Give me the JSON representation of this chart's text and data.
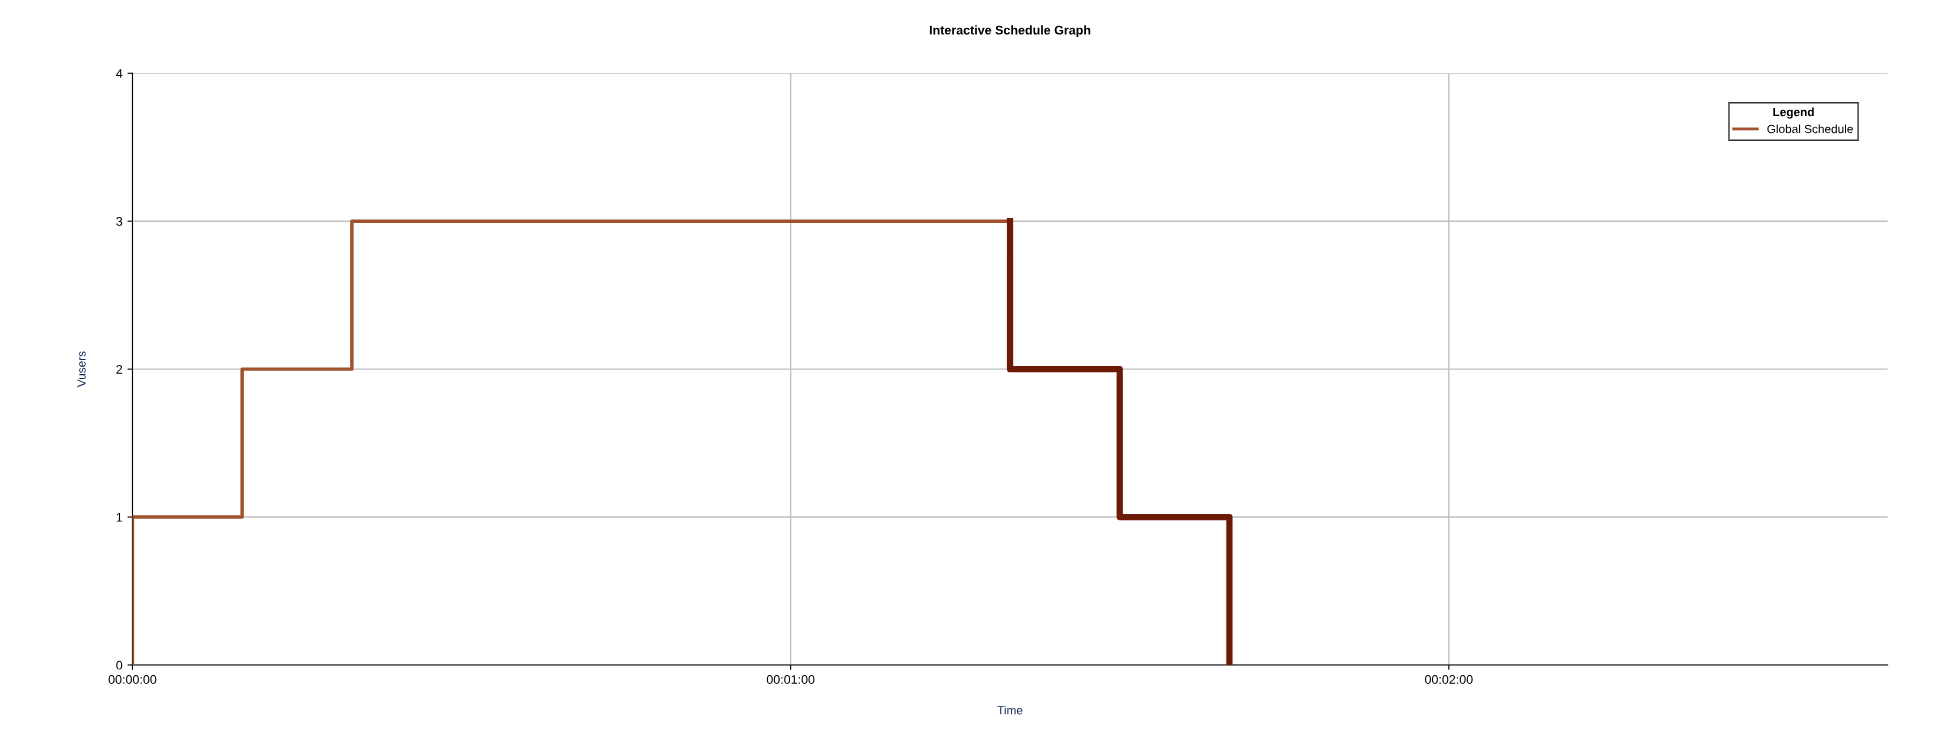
{
  "chart_data": {
    "type": "line",
    "title": "Interactive Schedule Graph",
    "xlabel": "Time",
    "ylabel": "Vusers",
    "legend_title": "Legend",
    "series": [
      {
        "name": "Global Schedule",
        "color": "#a0522d",
        "x": [
          0,
          0,
          10,
          10,
          20,
          20,
          80
        ],
        "values": [
          0,
          1,
          1,
          2,
          2,
          3,
          3
        ]
      },
      {
        "color": "#6b1a05",
        "x": [
          80,
          80,
          90,
          90,
          100,
          100
        ],
        "values": [
          3,
          2,
          2,
          1,
          1,
          0
        ]
      }
    ],
    "xlim": [
      0,
      160
    ],
    "xticks": [
      {
        "value": 0,
        "label": "00:00:00"
      },
      {
        "value": 60,
        "label": "00:01:00"
      },
      {
        "value": 120,
        "label": "00:02:00"
      }
    ],
    "ylim": [
      0,
      4
    ],
    "yticks": [
      0,
      1,
      2,
      3,
      4
    ],
    "grid": true,
    "legend": "top right",
    "line_style": "solid",
    "marker": "none"
  }
}
